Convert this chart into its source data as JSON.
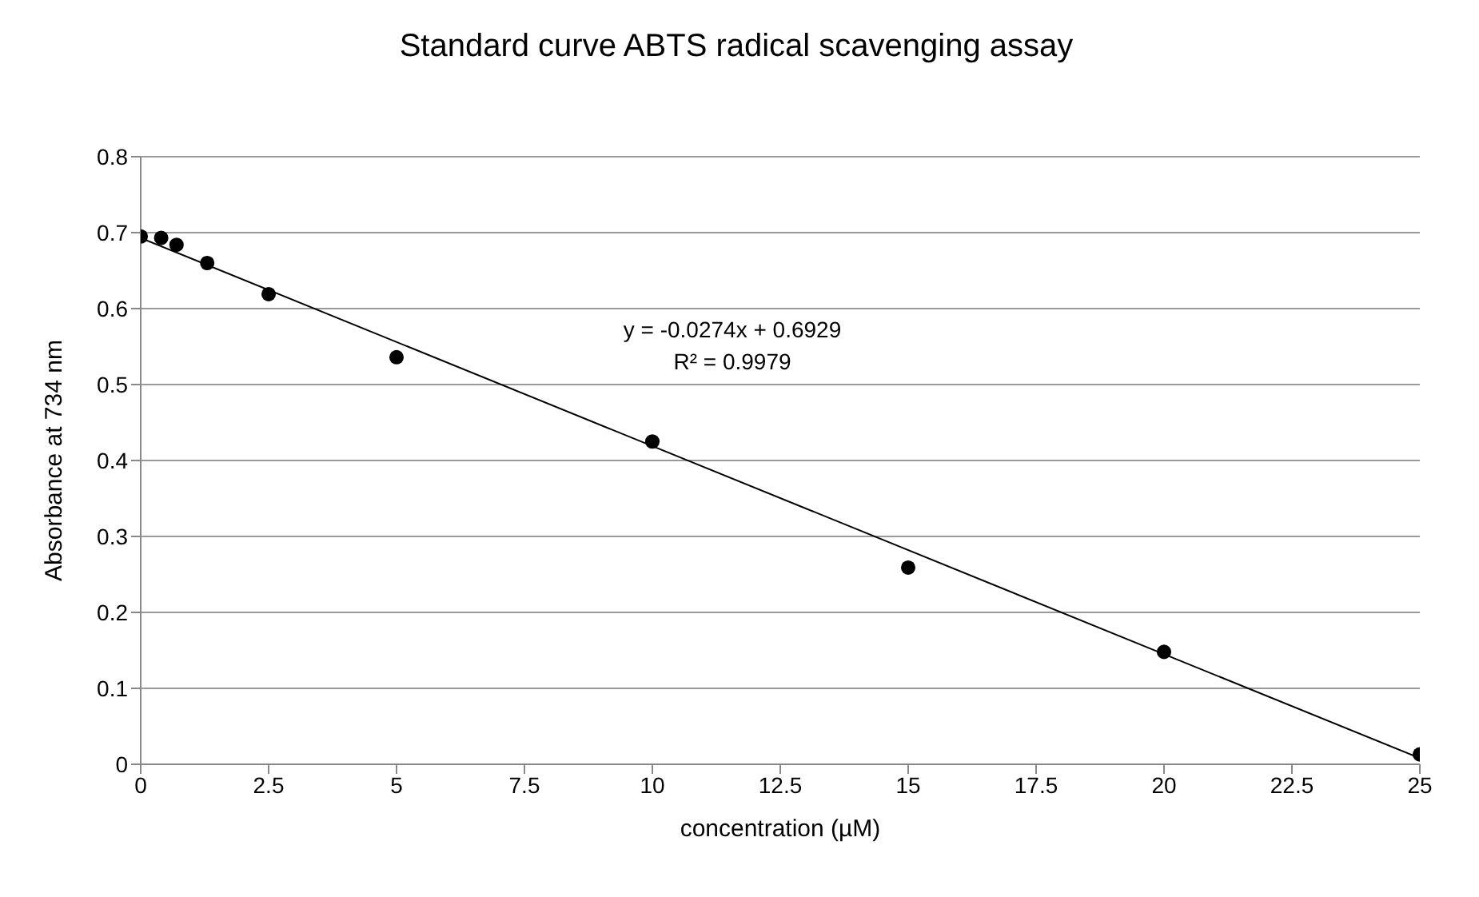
{
  "chart_data": {
    "type": "scatter",
    "title": "Standard curve ABTS radical scavenging assay",
    "xlabel": "concentration (µM)",
    "ylabel": "Absorbance at 734 nm",
    "series": [
      {
        "type": "scatter",
        "color": "#000000",
        "x": [
          0,
          0.4,
          0.7,
          1.3,
          2.5,
          5,
          10,
          15,
          20,
          25
        ],
        "values": [
          0.695,
          0.693,
          0.684,
          0.66,
          0.619,
          0.536,
          0.425,
          0.259,
          0.148,
          0.013
        ]
      },
      {
        "type": "line",
        "color": "#000000",
        "marker": "none",
        "x": [
          0,
          25
        ],
        "values": [
          0.693,
          0.008
        ]
      }
    ],
    "annotations": [
      "y = -0.0274x + 0.6929",
      "R² = 0.9979"
    ],
    "xlim": [
      0,
      25
    ],
    "xticks": [
      0,
      2.5,
      5,
      7.5,
      10,
      12.5,
      15,
      17.5,
      20,
      22.5,
      25
    ],
    "ylim": [
      0,
      0.8
    ],
    "yticks": [
      0,
      0.1,
      0.2,
      0.3,
      0.4,
      0.5,
      0.6,
      0.7,
      0.8
    ],
    "grid": "y",
    "marker": "circle",
    "line_style": "solid"
  }
}
